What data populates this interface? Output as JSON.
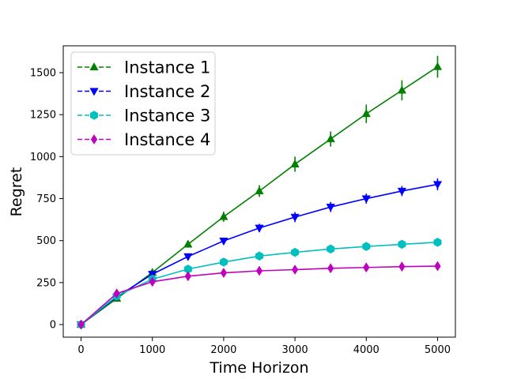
{
  "chart_data": {
    "type": "line",
    "title": "",
    "xlabel": "Time Horizon",
    "ylabel": "Regret",
    "xlim": [
      -250,
      5250
    ],
    "ylim": [
      -75,
      1660
    ],
    "x": [
      0,
      500,
      1000,
      1500,
      2000,
      2500,
      3000,
      3500,
      4000,
      4500,
      5000
    ],
    "xticks": [
      0,
      1000,
      2000,
      3000,
      4000,
      5000
    ],
    "yticks": [
      0,
      250,
      500,
      750,
      1000,
      1250,
      1500
    ],
    "xtick_labels": [
      "0",
      "1000",
      "2000",
      "3000",
      "4000",
      "5000"
    ],
    "ytick_labels": [
      "0",
      "250",
      "500",
      "750",
      "1000",
      "1250",
      "1500"
    ],
    "grid": false,
    "legend_position": "top-left",
    "series": [
      {
        "name": "Instance 1",
        "color": "#008000",
        "marker": "triangle-up",
        "values": [
          0,
          155,
          310,
          478,
          642,
          795,
          955,
          1105,
          1255,
          1395,
          1535
        ],
        "errors": [
          0,
          10,
          15,
          20,
          30,
          35,
          45,
          45,
          55,
          60,
          65
        ]
      },
      {
        "name": "Instance 2",
        "color": "#0000ff",
        "marker": "triangle-down",
        "values": [
          0,
          165,
          300,
          405,
          498,
          575,
          640,
          700,
          750,
          795,
          835
        ],
        "errors": [
          0,
          5,
          10,
          15,
          20,
          25,
          30,
          30,
          30,
          30,
          35
        ]
      },
      {
        "name": "Instance 3",
        "color": "#00bfbf",
        "marker": "hexagon",
        "values": [
          0,
          170,
          270,
          330,
          372,
          408,
          430,
          450,
          465,
          478,
          490
        ],
        "errors": [
          0,
          5,
          8,
          10,
          10,
          10,
          12,
          12,
          12,
          12,
          12
        ]
      },
      {
        "name": "Instance 4",
        "color": "#bf00bf",
        "marker": "diamond",
        "values": [
          0,
          185,
          255,
          288,
          308,
          320,
          327,
          335,
          340,
          345,
          348
        ],
        "errors": [
          0,
          5,
          5,
          6,
          6,
          6,
          6,
          6,
          6,
          6,
          6
        ]
      }
    ]
  }
}
